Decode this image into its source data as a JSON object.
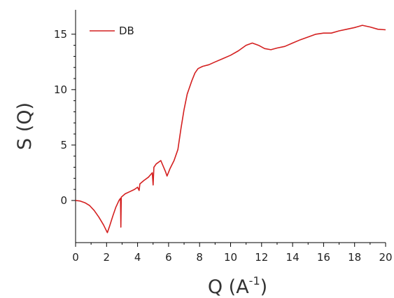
{
  "chart_data": {
    "type": "line",
    "title": "",
    "xlabel": "Q (A",
    "xlabel_superscript": "-1",
    "xlabel_close": ")",
    "ylabel": "S (Q)",
    "xlim": [
      0,
      20
    ],
    "ylim": [
      -3.8,
      17.2
    ],
    "xticks": [
      "0",
      "2",
      "4",
      "6",
      "8",
      "10",
      "12",
      "14",
      "16",
      "18",
      "20"
    ],
    "yticks": [
      "0",
      "5",
      "10",
      "15"
    ],
    "grid": false,
    "legend": {
      "position": "top-left"
    },
    "series": [
      {
        "name": "DB",
        "color": "#d42020",
        "points": [
          [
            0.0,
            0.0
          ],
          [
            0.3,
            -0.05
          ],
          [
            0.6,
            -0.2
          ],
          [
            0.9,
            -0.45
          ],
          [
            1.2,
            -0.9
          ],
          [
            1.5,
            -1.5
          ],
          [
            1.8,
            -2.2
          ],
          [
            2.05,
            -2.9
          ],
          [
            2.2,
            -2.3
          ],
          [
            2.4,
            -1.4
          ],
          [
            2.6,
            -0.6
          ],
          [
            2.8,
            0.0
          ],
          [
            2.9,
            0.2
          ],
          [
            2.92,
            -2.4
          ],
          [
            2.95,
            0.3
          ],
          [
            3.2,
            0.6
          ],
          [
            3.5,
            0.8
          ],
          [
            3.8,
            1.0
          ],
          [
            4.0,
            1.2
          ],
          [
            4.1,
            0.9
          ],
          [
            4.15,
            1.5
          ],
          [
            4.4,
            1.8
          ],
          [
            4.7,
            2.1
          ],
          [
            4.95,
            2.5
          ],
          [
            5.0,
            1.4
          ],
          [
            5.05,
            3.0
          ],
          [
            5.2,
            3.3
          ],
          [
            5.5,
            3.6
          ],
          [
            5.8,
            2.6
          ],
          [
            5.9,
            2.2
          ],
          [
            6.1,
            2.9
          ],
          [
            6.35,
            3.6
          ],
          [
            6.6,
            4.6
          ],
          [
            6.8,
            6.5
          ],
          [
            7.0,
            8.2
          ],
          [
            7.2,
            9.6
          ],
          [
            7.5,
            10.8
          ],
          [
            7.7,
            11.5
          ],
          [
            7.9,
            11.9
          ],
          [
            8.2,
            12.1
          ],
          [
            8.6,
            12.25
          ],
          [
            9.0,
            12.5
          ],
          [
            9.5,
            12.8
          ],
          [
            10.0,
            13.1
          ],
          [
            10.5,
            13.5
          ],
          [
            11.0,
            14.0
          ],
          [
            11.4,
            14.2
          ],
          [
            11.8,
            14.0
          ],
          [
            12.2,
            13.7
          ],
          [
            12.6,
            13.6
          ],
          [
            13.0,
            13.75
          ],
          [
            13.5,
            13.9
          ],
          [
            14.0,
            14.2
          ],
          [
            14.5,
            14.5
          ],
          [
            15.0,
            14.75
          ],
          [
            15.5,
            15.0
          ],
          [
            16.0,
            15.1
          ],
          [
            16.5,
            15.1
          ],
          [
            17.0,
            15.3
          ],
          [
            17.5,
            15.45
          ],
          [
            18.0,
            15.6
          ],
          [
            18.5,
            15.8
          ],
          [
            19.0,
            15.65
          ],
          [
            19.5,
            15.45
          ],
          [
            20.0,
            15.4
          ]
        ]
      }
    ]
  }
}
